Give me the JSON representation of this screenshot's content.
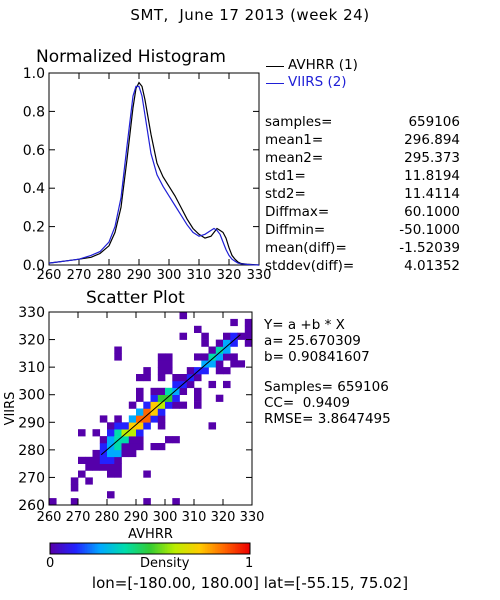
{
  "header": {
    "title": "SMT,  June 17 2013 (week 24)"
  },
  "legend": [
    {
      "label": "AVHRR (1)",
      "color": "#000000"
    },
    {
      "label": "VIIRS (2)",
      "color": "#1f1fd6"
    }
  ],
  "stats": [
    {
      "label": "samples=",
      "value": "659106"
    },
    {
      "label": "mean1=",
      "value": "296.894"
    },
    {
      "label": "mean2=",
      "value": "295.373"
    },
    {
      "label": "std1=",
      "value": "11.8194"
    },
    {
      "label": "std2=",
      "value": "11.4114"
    },
    {
      "label": "Diffmax=",
      "value": "60.1000"
    },
    {
      "label": "Diffmin=",
      "value": "-50.1000"
    },
    {
      "label": "mean(diff)=",
      "value": "-1.52039"
    },
    {
      "label": "stddev(diff)=",
      "value": "4.01352"
    }
  ],
  "fit": {
    "equation": "Y= a +b * X",
    "a": "a= 25.670309",
    "b": "b= 0.90841607",
    "samples": "Samples= 659106",
    "cc": "CC=  0.9409",
    "rmse": "RMSE= 3.8647495"
  },
  "colorbar": {
    "label": "Density",
    "min": "0",
    "max": "1",
    "colors": [
      "#ffffff",
      "#5500aa",
      "#2222ff",
      "#00aaff",
      "#00ddaa",
      "#33cc33",
      "#bbee00",
      "#ffcc00",
      "#ff6600",
      "#ee0000"
    ]
  },
  "footer": {
    "text": "lon=[-180.00, 180.00] lat=[-55.15, 75.02]"
  },
  "chart_data": [
    {
      "type": "line",
      "title": "Normalized Histogram",
      "xlim": [
        260,
        330
      ],
      "ylim": [
        0.0,
        1.0
      ],
      "x_ticks": [
        "260",
        "270",
        "280",
        "290",
        "300",
        "310",
        "320",
        "330"
      ],
      "y_ticks": [
        "0.0",
        "0.2",
        "0.4",
        "0.6",
        "0.8",
        "1.0"
      ],
      "series": [
        {
          "name": "AVHRR (1)",
          "color": "#000000",
          "x": [
            260,
            265,
            270,
            274,
            277,
            280,
            282,
            284,
            286,
            288,
            289,
            290,
            291,
            292,
            294,
            296,
            298,
            300,
            302,
            304,
            306,
            308,
            310,
            312,
            314,
            315,
            316,
            317,
            318,
            319,
            320,
            321,
            322,
            323,
            324,
            326,
            328,
            330
          ],
          "y": [
            0.01,
            0.02,
            0.03,
            0.04,
            0.06,
            0.1,
            0.17,
            0.3,
            0.55,
            0.82,
            0.92,
            0.95,
            0.93,
            0.86,
            0.68,
            0.53,
            0.46,
            0.41,
            0.36,
            0.3,
            0.24,
            0.19,
            0.16,
            0.14,
            0.15,
            0.17,
            0.19,
            0.18,
            0.17,
            0.14,
            0.09,
            0.05,
            0.03,
            0.015,
            0.008,
            0.004,
            0.002,
            0.0
          ]
        },
        {
          "name": "VIIRS (2)",
          "color": "#1f1fd6",
          "x": [
            260,
            265,
            270,
            274,
            277,
            280,
            282,
            284,
            286,
            288,
            289,
            290,
            291,
            292,
            294,
            296,
            298,
            300,
            302,
            304,
            306,
            308,
            310,
            312,
            314,
            315,
            316,
            317,
            318,
            319,
            320,
            321,
            322,
            323,
            324,
            326,
            328,
            330
          ],
          "y": [
            0.01,
            0.02,
            0.03,
            0.05,
            0.07,
            0.12,
            0.2,
            0.35,
            0.62,
            0.88,
            0.93,
            0.93,
            0.88,
            0.78,
            0.58,
            0.47,
            0.41,
            0.36,
            0.31,
            0.26,
            0.21,
            0.17,
            0.15,
            0.16,
            0.18,
            0.19,
            0.18,
            0.16,
            0.12,
            0.08,
            0.05,
            0.03,
            0.02,
            0.01,
            0.006,
            0.003,
            0.001,
            0.0
          ]
        }
      ]
    },
    {
      "type": "heatmap",
      "title": "Scatter Plot",
      "xlabel": "AVHRR",
      "ylabel": "VIIRS",
      "xlim": [
        260,
        330
      ],
      "ylim": [
        260,
        330
      ],
      "x_ticks": [
        "260",
        "270",
        "280",
        "290",
        "300",
        "310",
        "320",
        "330"
      ],
      "y_ticks": [
        "260",
        "270",
        "280",
        "290",
        "300",
        "310",
        "320",
        "330"
      ],
      "fit_line": {
        "a": 25.670309,
        "b": 0.90841607
      }
    }
  ]
}
